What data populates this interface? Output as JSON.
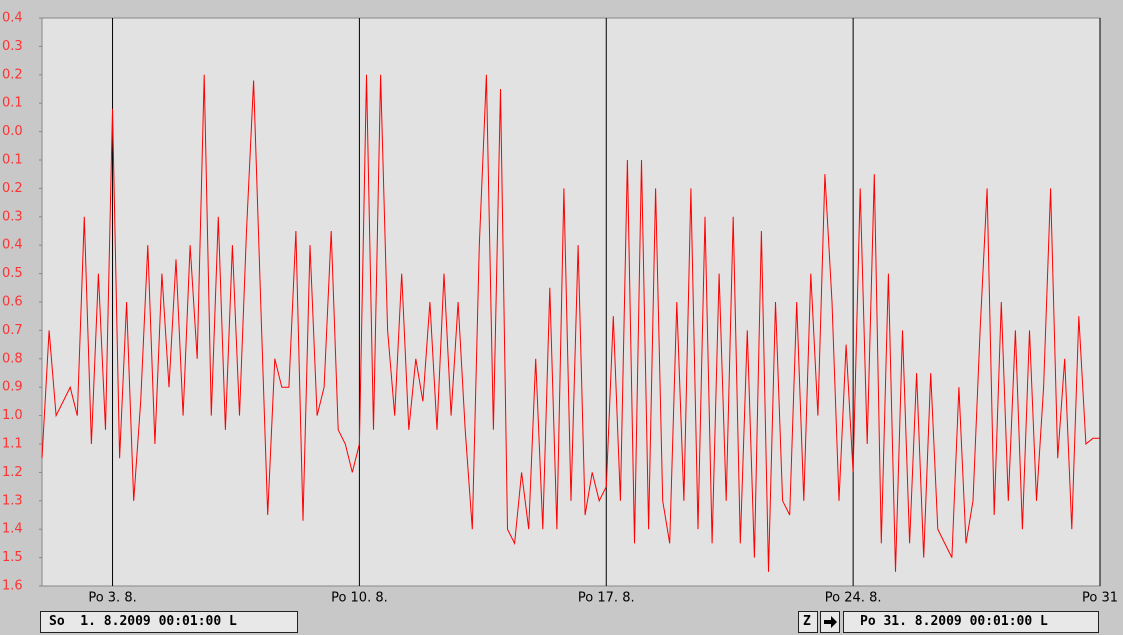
{
  "chart_data": {
    "type": "line",
    "x": [
      1,
      1.2,
      1.4,
      1.6,
      1.8,
      2,
      2.2,
      2.4,
      2.6,
      2.8,
      3,
      3.2,
      3.4,
      3.6,
      3.8,
      4,
      4.2,
      4.4,
      4.6,
      4.8,
      5,
      5.2,
      5.4,
      5.6,
      5.8,
      6,
      6.2,
      6.4,
      6.6,
      6.8,
      7,
      7.2,
      7.4,
      7.6,
      7.8,
      8,
      8.2,
      8.4,
      8.6,
      8.8,
      9,
      9.2,
      9.4,
      9.6,
      9.8,
      10,
      10.2,
      10.4,
      10.6,
      10.8,
      11,
      11.2,
      11.4,
      11.6,
      11.8,
      12,
      12.2,
      12.4,
      12.6,
      12.8,
      13,
      13.2,
      13.4,
      13.6,
      13.8,
      14,
      14.2,
      14.4,
      14.6,
      14.8,
      15,
      15.2,
      15.4,
      15.6,
      15.8,
      16,
      16.2,
      16.4,
      16.6,
      16.8,
      17,
      17.2,
      17.4,
      17.6,
      17.8,
      18,
      18.2,
      18.4,
      18.6,
      18.8,
      19,
      19.2,
      19.4,
      19.6,
      19.8,
      20,
      20.2,
      20.4,
      20.6,
      20.8,
      21,
      21.2,
      21.4,
      21.6,
      21.8,
      22,
      22.2,
      22.4,
      22.6,
      22.8,
      23,
      23.2,
      23.4,
      23.6,
      23.8,
      24,
      24.2,
      24.4,
      24.6,
      24.8,
      25,
      25.2,
      25.4,
      25.6,
      25.8,
      26,
      26.2,
      26.4,
      26.6,
      26.8,
      27,
      27.2,
      27.4,
      27.6,
      27.8,
      28,
      28.2,
      28.4,
      28.6,
      28.8,
      29,
      29.2,
      29.4,
      29.6,
      29.8,
      30,
      30.2,
      30.4,
      30.6,
      30.8,
      31
    ],
    "values": [
      -1.15,
      -0.7,
      -1.0,
      -0.95,
      -0.9,
      -1.0,
      -0.3,
      -1.1,
      -0.5,
      -1.05,
      0.08,
      -1.15,
      -0.6,
      -1.3,
      -0.95,
      -0.4,
      -1.1,
      -0.5,
      -0.9,
      -0.45,
      -1.0,
      -0.4,
      -0.8,
      0.2,
      -1.0,
      -0.3,
      -1.05,
      -0.4,
      -1.0,
      -0.35,
      0.18,
      -0.6,
      -1.35,
      -0.8,
      -0.9,
      -0.9,
      -0.35,
      -1.37,
      -0.4,
      -1.0,
      -0.9,
      -0.35,
      -1.05,
      -1.1,
      -1.2,
      -1.1,
      0.2,
      -1.05,
      0.2,
      -0.7,
      -1.0,
      -0.5,
      -1.05,
      -0.8,
      -0.95,
      -0.6,
      -1.05,
      -0.5,
      -1.0,
      -0.6,
      -1.05,
      -1.4,
      -0.4,
      0.2,
      -1.05,
      0.15,
      -1.4,
      -1.45,
      -1.2,
      -1.4,
      -0.8,
      -1.4,
      -0.55,
      -1.4,
      -0.2,
      -1.3,
      -0.4,
      -1.35,
      -1.2,
      -1.3,
      -1.25,
      -0.65,
      -1.3,
      -0.1,
      -1.45,
      -0.1,
      -1.4,
      -0.2,
      -1.3,
      -1.45,
      -0.6,
      -1.3,
      -0.2,
      -1.4,
      -0.3,
      -1.45,
      -0.5,
      -1.3,
      -0.3,
      -1.45,
      -0.7,
      -1.5,
      -0.35,
      -1.55,
      -0.6,
      -1.3,
      -1.35,
      -0.6,
      -1.3,
      -0.5,
      -1.0,
      -0.15,
      -0.6,
      -1.3,
      -0.75,
      -1.2,
      -0.2,
      -1.1,
      -0.15,
      -1.45,
      -0.5,
      -1.55,
      -0.7,
      -1.45,
      -0.85,
      -1.5,
      -0.85,
      -1.4,
      -1.45,
      -1.5,
      -0.9,
      -1.45,
      -1.3,
      -0.7,
      -0.2,
      -1.35,
      -0.6,
      -1.3,
      -0.7,
      -1.4,
      -0.7,
      -1.3,
      -0.9,
      -0.2,
      -1.15,
      -0.8,
      -1.4,
      -0.65,
      -1.1,
      -1.08,
      -1.08
    ],
    "color": "#ff0000",
    "xlim": [
      1,
      31
    ],
    "xticks": [
      {
        "value": 3,
        "label": "Po 3. 8."
      },
      {
        "value": 10,
        "label": "Po 10. 8."
      },
      {
        "value": 17,
        "label": "Po 17. 8."
      },
      {
        "value": 24,
        "label": "Po 24. 8."
      },
      {
        "value": 31,
        "label": "Po 31"
      }
    ],
    "ylim": [
      -1.6,
      0.4
    ],
    "yticks": [
      0.4,
      0.3,
      0.2,
      0.1,
      {
        "value": 0,
        "label": "0.0"
      },
      {
        "value": -0.1,
        "label": "0.1"
      },
      {
        "value": -0.2,
        "label": "0.2"
      },
      {
        "value": -0.3,
        "label": "0.3"
      },
      {
        "value": -0.4,
        "label": "0.4"
      },
      {
        "value": -0.5,
        "label": "0.5"
      },
      {
        "value": -0.6,
        "label": "0.6"
      },
      {
        "value": -0.7,
        "label": "0.7"
      },
      {
        "value": -0.8,
        "label": "0.8"
      },
      {
        "value": -0.9,
        "label": "0.9"
      },
      {
        "value": -1.0,
        "label": "1.0"
      },
      {
        "value": -1.1,
        "label": "1.1"
      },
      {
        "value": -1.2,
        "label": "1.2"
      },
      {
        "value": -1.3,
        "label": "1.3"
      },
      {
        "value": -1.4,
        "label": "1.4"
      },
      {
        "value": -1.5,
        "label": "1.5"
      },
      {
        "value": -1.6,
        "label": "1.6"
      }
    ],
    "grid": true,
    "grid_color": "#000000",
    "tick_color": "#ff3333",
    "controls": {
      "start": "So  1. 8.2009 00:01:00 L",
      "zoom": "Z",
      "end": "Po 31. 8.2009 00:01:00 L"
    }
  }
}
